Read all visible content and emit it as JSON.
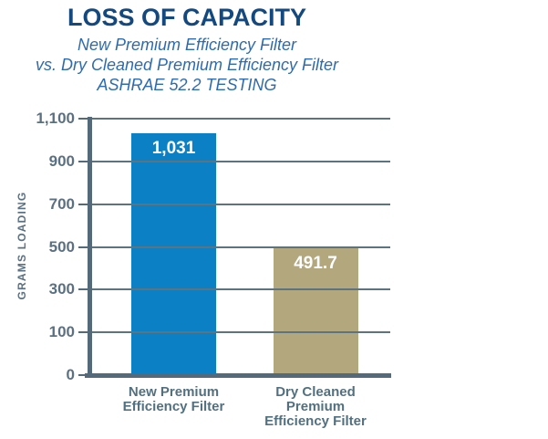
{
  "header": {
    "title": "LOSS OF CAPACITY",
    "subtitle_lines": [
      "New Premium Efficiency Filter",
      "vs. Dry Cleaned Premium Efficiency Filter",
      "ASHRAE 52.2 TESTING"
    ]
  },
  "chart_data": {
    "type": "bar",
    "title": "LOSS OF CAPACITY",
    "subtitle": "New Premium Efficiency Filter vs. Dry Cleaned Premium Efficiency Filter — ASHRAE 52.2 TESTING",
    "ylabel": "GRAMS LOADING",
    "xlabel": "",
    "categories": [
      "New Premium Efficiency Filter",
      "Dry Cleaned Premium Efficiency Filter"
    ],
    "category_lines": [
      [
        "New Premium",
        "Efficiency Filter"
      ],
      [
        "Dry Cleaned",
        "Premium",
        "Efficiency Filter"
      ]
    ],
    "values": [
      1031,
      491.7
    ],
    "value_labels": [
      "1,031",
      "491.7"
    ],
    "bar_colors": [
      "#0b80c4",
      "#b2a77d"
    ],
    "yticks": {
      "values": [
        0,
        100,
        300,
        500,
        700,
        900,
        1100
      ],
      "labels": [
        "0",
        "100",
        "300",
        "500",
        "700",
        "900",
        "1,100"
      ]
    },
    "grid": true,
    "legend": false,
    "layout_hint": "y ticks rendered at even pixel spacing; gridlines drawn over bars"
  },
  "colors": {
    "title": "#14497f",
    "subtitle": "#2e6bae",
    "axis": "#54697a",
    "gridline": "#5e7380",
    "tick_label": "#5b7080",
    "category_label": "#52707f",
    "value_label": "#ffffff",
    "bar_blue": "#0b80c4",
    "bar_tan": "#b2a77d",
    "background": "#ffffff"
  }
}
